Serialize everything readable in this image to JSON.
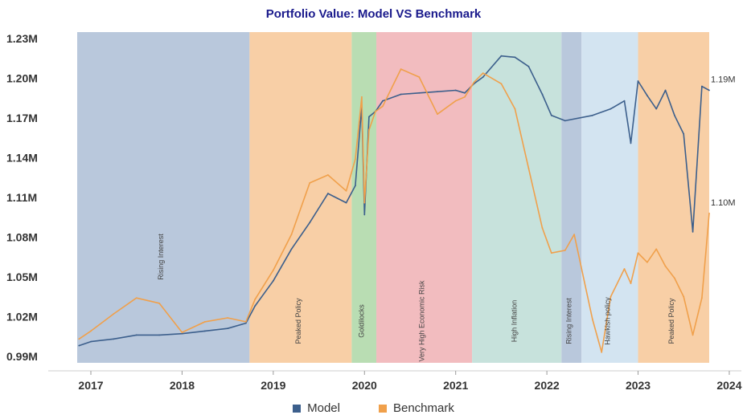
{
  "chart_data": {
    "type": "line",
    "title": "Portfolio Value: Model VS Benchmark",
    "xlabel": "",
    "ylabel": "",
    "xlim": [
      2016.85,
      2023.78
    ],
    "ylim": [
      0.985,
      1.235
    ],
    "y_ticks": [
      {
        "value": 0.99,
        "label": "0.99M"
      },
      {
        "value": 1.02,
        "label": "1.02M"
      },
      {
        "value": 1.05,
        "label": "1.05M"
      },
      {
        "value": 1.08,
        "label": "1.08M"
      },
      {
        "value": 1.11,
        "label": "1.11M"
      },
      {
        "value": 1.14,
        "label": "1.14M"
      },
      {
        "value": 1.17,
        "label": "1.17M"
      },
      {
        "value": 1.2,
        "label": "1.20M"
      },
      {
        "value": 1.23,
        "label": "1.23M"
      }
    ],
    "x_ticks": [
      {
        "value": 2017,
        "label": "2017"
      },
      {
        "value": 2018,
        "label": "2018"
      },
      {
        "value": 2019,
        "label": "2019"
      },
      {
        "value": 2020,
        "label": "2020"
      },
      {
        "value": 2021,
        "label": "2021"
      },
      {
        "value": 2022,
        "label": "2022"
      },
      {
        "value": 2023,
        "label": "2023"
      },
      {
        "value": 2024,
        "label": "2024"
      }
    ],
    "grid": false,
    "legend": "bottom-center",
    "regimes": [
      {
        "label": "Rising Interest",
        "start": 2016.85,
        "end": 2018.74,
        "color": "#b9c8dc"
      },
      {
        "label": "Peaked Policy",
        "start": 2018.74,
        "end": 2019.86,
        "color": "#f8cfa6"
      },
      {
        "label": "Goldilocks",
        "start": 2019.86,
        "end": 2020.13,
        "color": "#b9ddb3"
      },
      {
        "label": "Very High Economic Risk",
        "start": 2020.13,
        "end": 2021.18,
        "color": "#f2bcbf"
      },
      {
        "label": "High Inflation",
        "start": 2021.18,
        "end": 2022.16,
        "color": "#c7e2dc"
      },
      {
        "label": "Rising Interest",
        "start": 2022.16,
        "end": 2022.38,
        "color": "#b9c8dc"
      },
      {
        "label": "Hawkish policy",
        "start": 2022.38,
        "end": 2023.0,
        "color": "#d3e4f1"
      },
      {
        "label": "Peaked Policy",
        "start": 2023.0,
        "end": 2023.78,
        "color": "#f8cfa6"
      }
    ],
    "series": [
      {
        "name": "Model",
        "color": "#3c5f8c",
        "x": [
          2016.87,
          2017.0,
          2017.25,
          2017.5,
          2017.75,
          2018.0,
          2018.25,
          2018.5,
          2018.7,
          2018.8,
          2019.0,
          2019.2,
          2019.4,
          2019.6,
          2019.8,
          2019.9,
          2019.97,
          2020.0,
          2020.05,
          2020.12,
          2020.2,
          2020.4,
          2020.6,
          2020.8,
          2021.0,
          2021.1,
          2021.2,
          2021.3,
          2021.5,
          2021.65,
          2021.8,
          2021.95,
          2022.05,
          2022.2,
          2022.5,
          2022.7,
          2022.85,
          2022.92,
          2023.0,
          2023.1,
          2023.2,
          2023.3,
          2023.4,
          2023.5,
          2023.6,
          2023.7,
          2023.78
        ],
        "y": [
          0.998,
          1.001,
          1.003,
          1.006,
          1.006,
          1.007,
          1.009,
          1.011,
          1.015,
          1.028,
          1.047,
          1.071,
          1.091,
          1.113,
          1.106,
          1.119,
          1.179,
          1.097,
          1.171,
          1.175,
          1.183,
          1.188,
          1.189,
          1.19,
          1.191,
          1.189,
          1.196,
          1.201,
          1.217,
          1.216,
          1.209,
          1.188,
          1.172,
          1.168,
          1.172,
          1.177,
          1.183,
          1.151,
          1.198,
          1.187,
          1.177,
          1.191,
          1.172,
          1.158,
          1.084,
          1.194,
          1.191
        ]
      },
      {
        "name": "Benchmark",
        "color": "#f0a04b",
        "x": [
          2016.87,
          2017.0,
          2017.25,
          2017.5,
          2017.75,
          2018.0,
          2018.25,
          2018.5,
          2018.7,
          2018.8,
          2019.0,
          2019.2,
          2019.4,
          2019.6,
          2019.8,
          2019.9,
          2019.97,
          2020.0,
          2020.05,
          2020.12,
          2020.2,
          2020.4,
          2020.6,
          2020.8,
          2021.0,
          2021.1,
          2021.2,
          2021.3,
          2021.5,
          2021.65,
          2021.8,
          2021.95,
          2022.05,
          2022.2,
          2022.3,
          2022.5,
          2022.6,
          2022.7,
          2022.85,
          2022.92,
          2023.0,
          2023.1,
          2023.2,
          2023.3,
          2023.4,
          2023.5,
          2023.6,
          2023.7,
          2023.78
        ],
        "y": [
          1.003,
          1.009,
          1.022,
          1.034,
          1.03,
          1.008,
          1.016,
          1.019,
          1.016,
          1.033,
          1.055,
          1.082,
          1.121,
          1.127,
          1.115,
          1.139,
          1.186,
          1.106,
          1.161,
          1.175,
          1.179,
          1.207,
          1.201,
          1.173,
          1.183,
          1.186,
          1.197,
          1.204,
          1.196,
          1.177,
          1.132,
          1.087,
          1.068,
          1.07,
          1.082,
          1.018,
          0.993,
          1.035,
          1.056,
          1.045,
          1.068,
          1.061,
          1.071,
          1.058,
          1.049,
          1.035,
          1.006,
          1.034,
          1.098
        ]
      }
    ],
    "end_labels": [
      {
        "series": "Model",
        "label": "1.19M"
      },
      {
        "series": "Benchmark",
        "label": "1.10M"
      }
    ]
  }
}
